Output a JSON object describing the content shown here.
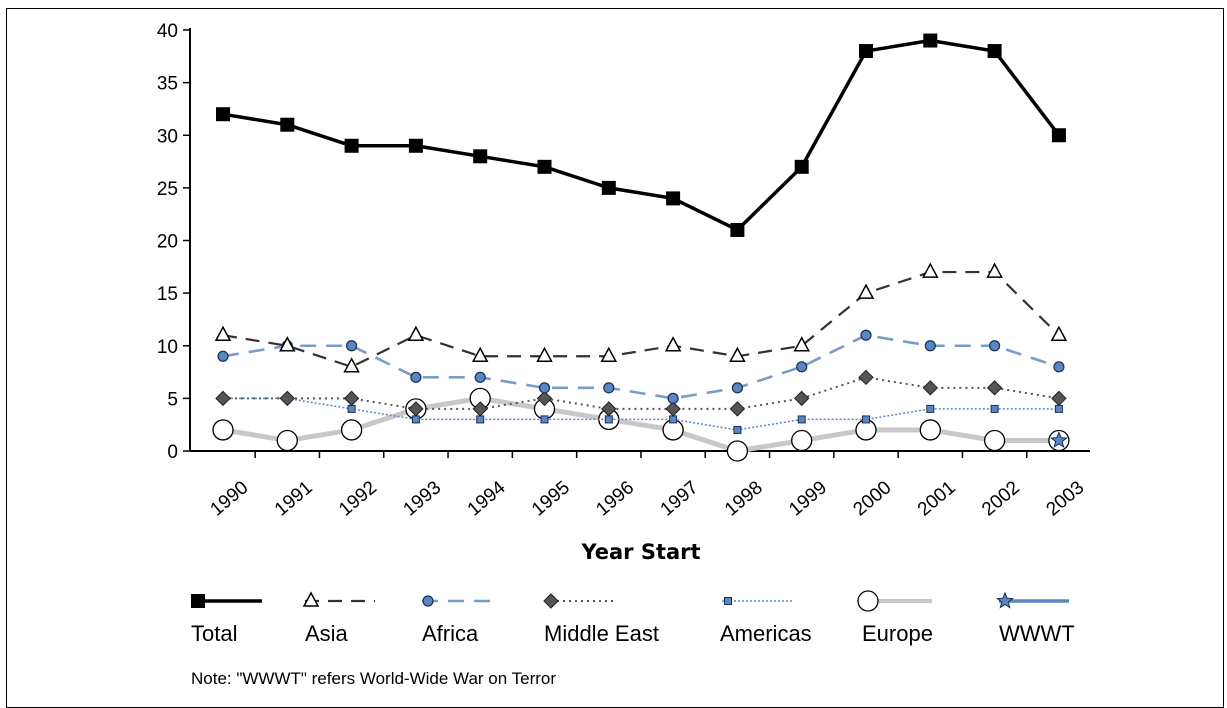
{
  "chart_data": {
    "type": "line",
    "title": "",
    "xlabel": "Year Start",
    "ylabel": "",
    "ylim": [
      0,
      40
    ],
    "yticks": [
      0,
      5,
      10,
      15,
      20,
      25,
      30,
      35,
      40
    ],
    "categories": [
      "1990",
      "1991",
      "1992",
      "1993",
      "1994",
      "1995",
      "1996",
      "1997",
      "1998",
      "1999",
      "2000",
      "2001",
      "2002",
      "2003"
    ],
    "grid": false,
    "legend_position": "bottom",
    "series": [
      {
        "name": "Total",
        "color": "#000000",
        "marker": "filled-square",
        "line_style": "solid",
        "values": [
          32,
          31,
          29,
          29,
          28,
          27,
          25,
          24,
          21,
          27,
          38,
          39,
          38,
          30
        ]
      },
      {
        "name": "Asia",
        "color": "#333333",
        "marker": "open-triangle",
        "line_style": "long-dash",
        "values": [
          11,
          10,
          8,
          11,
          9,
          9,
          9,
          10,
          9,
          10,
          15,
          17,
          17,
          11
        ]
      },
      {
        "name": "Africa",
        "color": "#7a9cc6",
        "marker": "blue-circle",
        "line_style": "dash",
        "values": [
          9,
          10,
          10,
          7,
          7,
          6,
          6,
          5,
          6,
          8,
          11,
          10,
          10,
          8
        ]
      },
      {
        "name": "Middle East",
        "color": "#555555",
        "marker": "gray-diamond",
        "line_style": "dotted",
        "values": [
          5,
          5,
          5,
          4,
          4,
          5,
          4,
          4,
          4,
          5,
          7,
          6,
          6,
          5
        ]
      },
      {
        "name": "Americas",
        "color": "#5b86c4",
        "marker": "small-blue-square",
        "line_style": "thin-dotted",
        "values": [
          5,
          5,
          4,
          3,
          3,
          3,
          3,
          3,
          2,
          3,
          3,
          4,
          4,
          4
        ]
      },
      {
        "name": "Europe",
        "color": "#c8c8c8",
        "marker": "open-circle",
        "line_style": "thick-solid",
        "values": [
          2,
          1,
          2,
          4,
          5,
          4,
          3,
          2,
          0,
          1,
          2,
          2,
          1,
          1
        ]
      },
      {
        "name": "WWWT",
        "color": "#5b86c4",
        "marker": "blue-star",
        "line_style": "solid",
        "values": [
          null,
          null,
          null,
          null,
          null,
          null,
          null,
          null,
          null,
          null,
          null,
          null,
          null,
          1
        ]
      }
    ],
    "note": "Note:  \"WWWT\" refers World-Wide War on Terror"
  }
}
